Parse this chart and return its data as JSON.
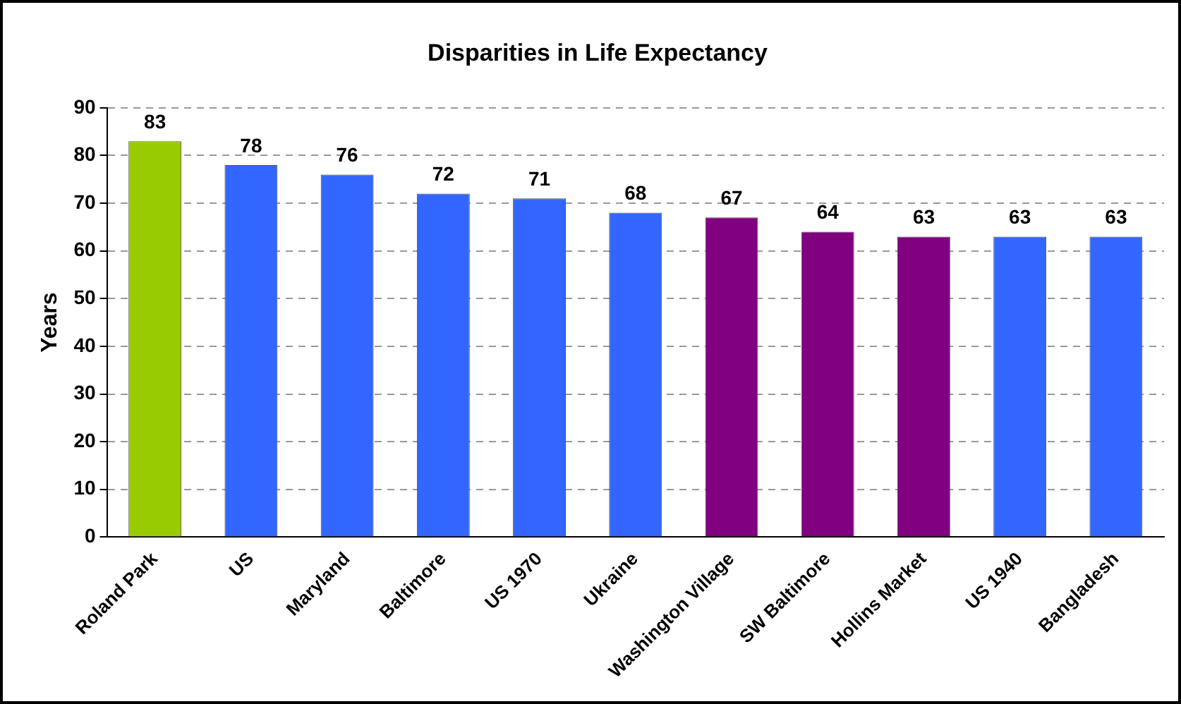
{
  "chart_data": {
    "type": "bar",
    "title": "Disparities in Life Expectancy",
    "ylabel": "Years",
    "categories": [
      "Roland Park",
      "US",
      "Maryland",
      "Baltimore",
      "US 1970",
      "Ukraine",
      "Washington Village",
      "SW Baltimore",
      "Hollins Market",
      "US 1940",
      "Bangladesh"
    ],
    "values": [
      83,
      78,
      76,
      72,
      71,
      68,
      67,
      64,
      63,
      63,
      63
    ],
    "colors": [
      "#99cc00",
      "#3366ff",
      "#3366ff",
      "#3366ff",
      "#3366ff",
      "#3366ff",
      "#800080",
      "#800080",
      "#800080",
      "#3366ff",
      "#3366ff"
    ],
    "ylim": [
      0,
      90
    ],
    "yticks": [
      0,
      10,
      20,
      30,
      40,
      50,
      60,
      70,
      80,
      90
    ],
    "grid": "y",
    "data_labels": true,
    "legend": false
  }
}
